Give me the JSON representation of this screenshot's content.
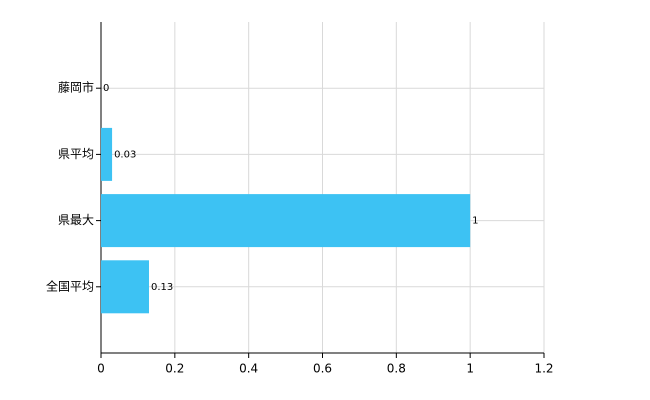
{
  "chart_data": {
    "type": "hbar",
    "categories": [
      "藤岡市",
      "県平均",
      "県最大",
      "全国平均"
    ],
    "values": [
      0,
      0.03,
      1,
      0.13
    ],
    "color": "#3dc2f3",
    "xlim": [
      0,
      1.2
    ],
    "xticks": [
      0,
      0.2,
      0.4,
      0.6,
      0.8,
      1,
      1.2
    ],
    "grid": true
  }
}
